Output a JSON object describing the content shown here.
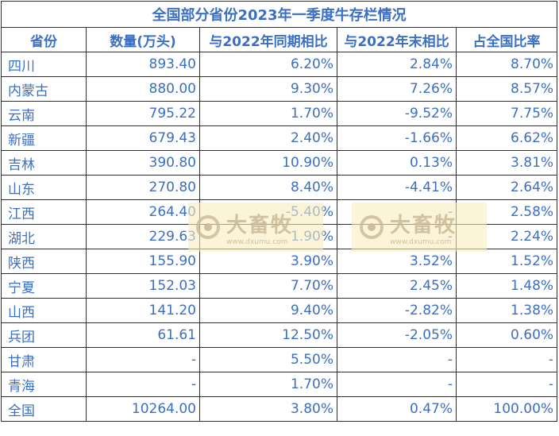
{
  "title": "全国部分省份2023年一季度牛存栏情况",
  "headers": [
    "省份",
    "数量(万头)",
    "与2022年同期相比",
    "与2022年末相比",
    "占全国比率"
  ],
  "rows": [
    [
      "四川",
      "893.40",
      "6.20%",
      "2.84%",
      "8.70%"
    ],
    [
      "内蒙古",
      "880.00",
      "9.30%",
      "7.26%",
      "8.57%"
    ],
    [
      "云南",
      "795.22",
      "1.70%",
      "-9.52%",
      "7.75%"
    ],
    [
      "新疆",
      "679.43",
      "2.40%",
      "-1.66%",
      "6.62%"
    ],
    [
      "吉林",
      "390.80",
      "10.90%",
      "0.13%",
      "3.81%"
    ],
    [
      "山东",
      "270.80",
      "8.40%",
      "-4.41%",
      "2.64%"
    ],
    [
      "江西",
      "264.40",
      "-5.40%",
      "-",
      "2.58%"
    ],
    [
      "湖北",
      "229.63",
      "1.90%",
      "-",
      "2.24%"
    ],
    [
      "陕西",
      "155.90",
      "3.90%",
      "3.52%",
      "1.52%"
    ],
    [
      "宁夏",
      "152.03",
      "7.70%",
      "2.45%",
      "1.48%"
    ],
    [
      "山西",
      "141.20",
      "9.40%",
      "-2.82%",
      "1.38%"
    ],
    [
      "兵团",
      "61.61",
      "12.50%",
      "-2.05%",
      "0.60%"
    ],
    [
      "甘肃",
      "-",
      "5.50%",
      "-",
      "-"
    ],
    [
      "青海",
      "-",
      "1.70%",
      "-",
      "-"
    ],
    [
      "全国",
      "10264.00",
      "3.80%",
      "0.47%",
      "100.00%"
    ]
  ],
  "watermark": {
    "brand": "大畜牧",
    "site": "www.dxumu.com"
  }
}
